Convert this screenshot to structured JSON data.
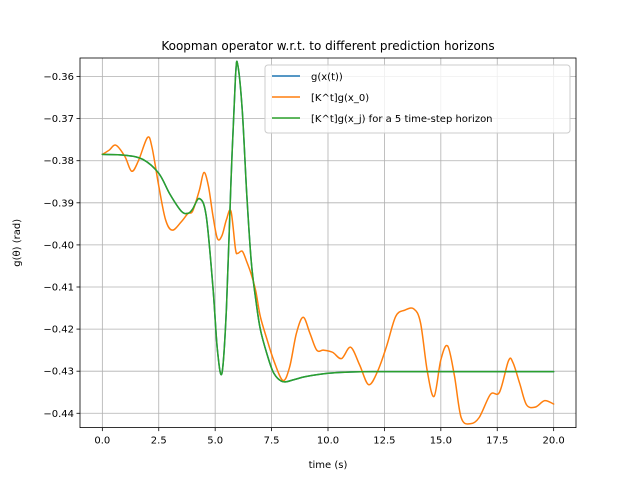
{
  "chart_data": {
    "type": "line",
    "title": "Koopman operator w.r.t. to different prediction horizons",
    "xlabel": "time (s)",
    "ylabel": "g(θ) (rad)",
    "xlim": [
      -0.99,
      20.99
    ],
    "ylim": [
      -0.4434,
      -0.3556
    ],
    "xticks": [
      0.0,
      2.5,
      5.0,
      7.5,
      10.0,
      12.5,
      15.0,
      17.5,
      20.0
    ],
    "xtick_labels": [
      "0.0",
      "2.5",
      "5.0",
      "7.5",
      "10.0",
      "12.5",
      "15.0",
      "17.5",
      "20.0"
    ],
    "yticks": [
      -0.36,
      -0.37,
      -0.38,
      -0.39,
      -0.4,
      -0.41,
      -0.42,
      -0.43,
      -0.44
    ],
    "ytick_labels": [
      "−0.36",
      "−0.37",
      "−0.38",
      "−0.39",
      "−0.40",
      "−0.41",
      "−0.42",
      "−0.43",
      "−0.44"
    ],
    "grid": true,
    "legend_position": "top-right",
    "series": [
      {
        "name": "g(x(t))",
        "color": "#1f77b4",
        "x": [
          0,
          1,
          1.8,
          2.5,
          3.0,
          3.5,
          3.8,
          4.0,
          4.3,
          4.6,
          4.9,
          5.1,
          5.3,
          5.5,
          5.7,
          5.9,
          6.0,
          6.2,
          6.4,
          6.6,
          6.8,
          7.0,
          7.3,
          7.6,
          8.0,
          8.5,
          9.0,
          10,
          11,
          12,
          14,
          16,
          18,
          20
        ],
        "y": [
          -0.3785,
          -0.3787,
          -0.3797,
          -0.383,
          -0.388,
          -0.392,
          -0.3925,
          -0.3915,
          -0.389,
          -0.393,
          -0.41,
          -0.425,
          -0.4305,
          -0.415,
          -0.385,
          -0.36,
          -0.3572,
          -0.368,
          -0.388,
          -0.404,
          -0.413,
          -0.42,
          -0.426,
          -0.4305,
          -0.4325,
          -0.432,
          -0.4313,
          -0.4305,
          -0.4302,
          -0.4301,
          -0.4301,
          -0.4301,
          -0.4301,
          -0.4301
        ]
      },
      {
        "name": "[K^t]g(x_0)",
        "color": "#ff7f0e",
        "x": [
          0,
          0.3,
          0.6,
          1.0,
          1.3,
          1.6,
          2.0,
          2.2,
          2.5,
          2.8,
          3.1,
          3.5,
          3.8,
          4.0,
          4.3,
          4.5,
          4.7,
          4.9,
          5.1,
          5.3,
          5.5,
          5.7,
          5.9,
          6.0,
          6.2,
          6.4,
          6.6,
          6.8,
          7.0,
          7.3,
          7.6,
          8.0,
          8.3,
          8.6,
          8.9,
          9.2,
          9.5,
          9.8,
          10.2,
          10.6,
          11.0,
          11.4,
          11.8,
          12.2,
          12.6,
          13.0,
          13.4,
          13.8,
          14.1,
          14.4,
          14.7,
          15.0,
          15.3,
          15.6,
          15.9,
          16.3,
          16.7,
          17.2,
          17.6,
          18.0,
          18.2,
          18.5,
          18.8,
          19.2,
          19.6,
          20.0
        ],
        "y": [
          -0.3785,
          -0.3775,
          -0.3763,
          -0.379,
          -0.3825,
          -0.38,
          -0.3745,
          -0.3768,
          -0.386,
          -0.394,
          -0.3965,
          -0.3945,
          -0.3925,
          -0.392,
          -0.387,
          -0.3828,
          -0.386,
          -0.393,
          -0.3985,
          -0.3978,
          -0.394,
          -0.392,
          -0.401,
          -0.402,
          -0.4015,
          -0.404,
          -0.407,
          -0.411,
          -0.417,
          -0.4225,
          -0.4275,
          -0.4322,
          -0.429,
          -0.421,
          -0.4172,
          -0.421,
          -0.425,
          -0.425,
          -0.4255,
          -0.427,
          -0.4243,
          -0.4285,
          -0.4332,
          -0.43,
          -0.424,
          -0.417,
          -0.4155,
          -0.4152,
          -0.4185,
          -0.43,
          -0.436,
          -0.4273,
          -0.424,
          -0.431,
          -0.441,
          -0.4425,
          -0.441,
          -0.4355,
          -0.435,
          -0.4275,
          -0.428,
          -0.433,
          -0.438,
          -0.4385,
          -0.437,
          -0.4378
        ]
      },
      {
        "name": "[K^t]g(x_j) for a 5 time-step horizon",
        "color": "#2ca02c",
        "x": [
          0,
          1,
          1.8,
          2.5,
          3.0,
          3.5,
          3.8,
          4.0,
          4.3,
          4.6,
          4.9,
          5.1,
          5.3,
          5.5,
          5.7,
          5.9,
          6.0,
          6.2,
          6.4,
          6.6,
          6.8,
          7.0,
          7.3,
          7.6,
          8.0,
          8.5,
          9.0,
          10,
          11,
          12,
          14,
          16,
          18,
          20
        ],
        "y": [
          -0.3785,
          -0.3787,
          -0.3797,
          -0.383,
          -0.388,
          -0.392,
          -0.3925,
          -0.3915,
          -0.389,
          -0.393,
          -0.41,
          -0.425,
          -0.4305,
          -0.415,
          -0.385,
          -0.36,
          -0.3572,
          -0.368,
          -0.388,
          -0.404,
          -0.413,
          -0.42,
          -0.426,
          -0.4305,
          -0.4325,
          -0.432,
          -0.4313,
          -0.4305,
          -0.4302,
          -0.4301,
          -0.4301,
          -0.4301,
          -0.4301,
          -0.4301
        ]
      }
    ]
  }
}
